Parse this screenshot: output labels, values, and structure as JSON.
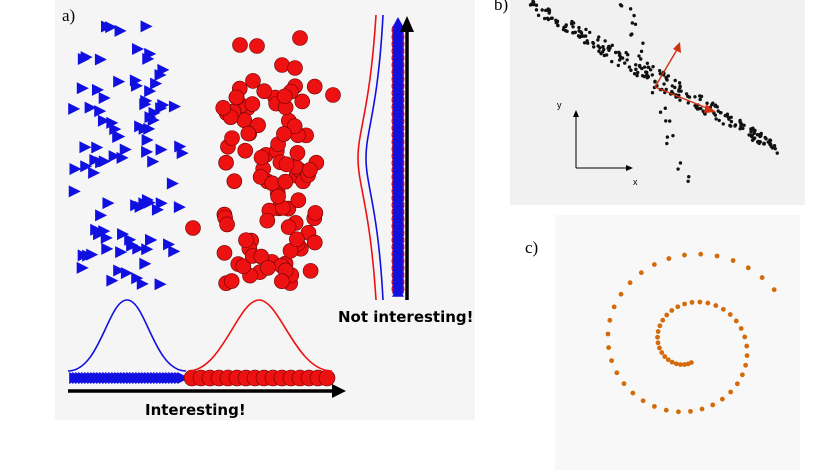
{
  "panel_a": {
    "label": "a)",
    "interesting_label": "Interesting!",
    "not_interesting_label": "Not interesting!"
  },
  "panel_b": {
    "label": "b)",
    "y_axis_label": "y",
    "x_axis_label": "x"
  },
  "panel_c": {
    "label": "c)"
  },
  "colors": {
    "blue": "#1010e0",
    "red": "#ee1111",
    "orange": "#d46a0a",
    "dark": "#111111"
  }
}
